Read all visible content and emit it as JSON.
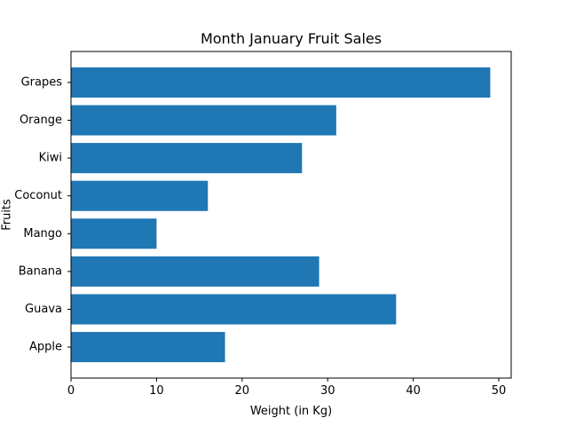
{
  "chart_data": {
    "type": "bar",
    "orientation": "horizontal",
    "title": "Month January Fruit Sales",
    "xlabel": "Weight (in Kg)",
    "ylabel": "Fruits",
    "categories": [
      "Apple",
      "Guava",
      "Banana",
      "Mango",
      "Coconut",
      "Kiwi",
      "Orange",
      "Grapes"
    ],
    "values": [
      18,
      38,
      29,
      10,
      16,
      27,
      31,
      49
    ],
    "xlim": [
      0,
      51.45
    ],
    "xticks": [
      0,
      10,
      20,
      30,
      40,
      50
    ],
    "grid": false,
    "bar_color": "#1f77b4"
  }
}
